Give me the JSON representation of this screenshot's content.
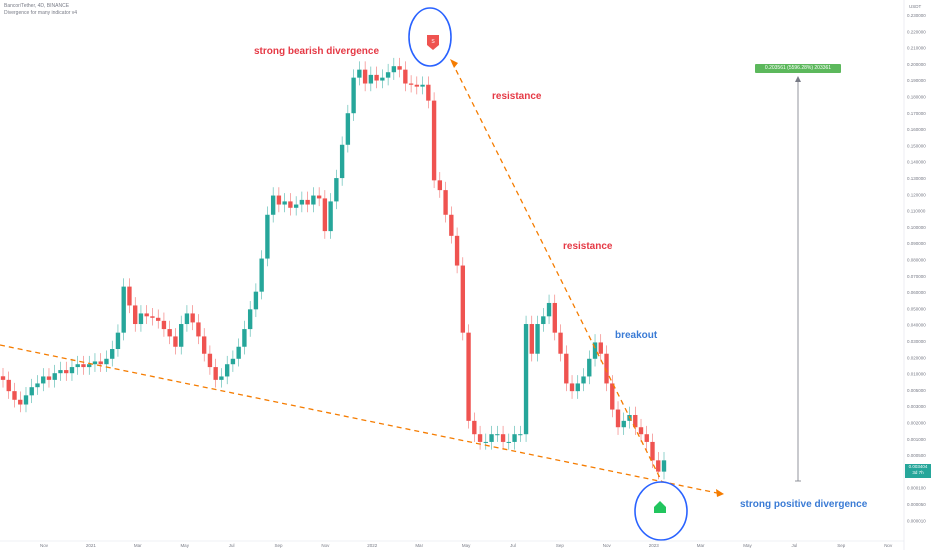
{
  "legend": {
    "symbol_line": "Bancor/Tether, 4D, BINANCE",
    "indicator_line": "Divergence for many indicator v4"
  },
  "annotations": {
    "bearish_divergence": "strong bearish divergence",
    "resistance_1": "resistance",
    "resistance_2": "resistance",
    "breakout": "breakout",
    "positive_divergence": "strong positive divergence"
  },
  "markers": {
    "sell_marker": "S",
    "sell_icon": "arrow-down-icon",
    "buy_icon": "arrow-up-icon"
  },
  "measure_label": "0.203561 (5596.28%) 203361",
  "price_axis": {
    "unit": "USDT",
    "ticks": [
      "0.230000",
      "0.220000",
      "0.210000",
      "0.200000",
      "0.190000",
      "0.180000",
      "0.170000",
      "0.160000",
      "0.150000",
      "0.140000",
      "0.130000",
      "0.120000",
      "0.110000",
      "0.100000",
      "0.090000",
      "0.080000",
      "0.070000",
      "0.060000",
      "0.050000",
      "0.040000",
      "0.030000",
      "0.020000",
      "0.010000",
      "0.005000",
      "0.003000",
      "0.002000",
      "0.001000",
      "0.000500",
      "0.000300",
      "0.000100",
      "0.000050",
      "0.000010"
    ]
  },
  "current_price": {
    "value": "0.003404",
    "countdown": "3d 7h"
  },
  "time_axis": {
    "ticks": [
      "Nov",
      "2021",
      "Mar",
      "May",
      "Jul",
      "Sep",
      "Nov",
      "2022",
      "Mar",
      "May",
      "Jul",
      "Sep",
      "Nov",
      "2023",
      "Mar",
      "May",
      "Jul",
      "Sep",
      "Nov"
    ]
  },
  "colors": {
    "up": "#26a69a",
    "down": "#ef5350",
    "trendline": "#f57c00",
    "circle": "#2962ff",
    "measure": "#5cb85c"
  },
  "chart_data": {
    "type": "candlestick",
    "x_range": [
      "Nov 2020",
      "Dec 2023"
    ],
    "log_scale": true,
    "grid": false,
    "ohlc_close_series": [
      0.0021,
      0.0018,
      0.0016,
      0.0015,
      0.0017,
      0.0019,
      0.002,
      0.0022,
      0.0021,
      0.0023,
      0.0024,
      0.0023,
      0.0025,
      0.0026,
      0.0025,
      0.0026,
      0.0027,
      0.0026,
      0.0028,
      0.0032,
      0.004,
      0.0075,
      0.0058,
      0.0045,
      0.0052,
      0.005,
      0.0049,
      0.0047,
      0.0042,
      0.0038,
      0.0033,
      0.0045,
      0.0052,
      0.0046,
      0.0038,
      0.003,
      0.0025,
      0.0021,
      0.0022,
      0.0026,
      0.0028,
      0.0033,
      0.0042,
      0.0055,
      0.007,
      0.011,
      0.02,
      0.026,
      0.023,
      0.024,
      0.022,
      0.023,
      0.0245,
      0.023,
      0.026,
      0.025,
      0.016,
      0.024,
      0.033,
      0.052,
      0.08,
      0.13,
      0.145,
      0.12,
      0.135,
      0.125,
      0.13,
      0.14,
      0.152,
      0.145,
      0.12,
      0.118,
      0.115,
      0.118,
      0.095,
      0.032,
      0.028,
      0.02,
      0.015,
      0.01,
      0.004,
      0.0012,
      0.001,
      0.0009,
      0.0009,
      0.001,
      0.001,
      0.0009,
      0.0009,
      0.001,
      0.001,
      0.0045,
      0.003,
      0.0045,
      0.005,
      0.006,
      0.004,
      0.003,
      0.002,
      0.0018,
      0.002,
      0.0022,
      0.0028,
      0.0035,
      0.003,
      0.002,
      0.0014,
      0.0011,
      0.0012,
      0.0013,
      0.0011,
      0.001,
      0.0009,
      0.0007,
      0.0006,
      0.0007
    ]
  }
}
